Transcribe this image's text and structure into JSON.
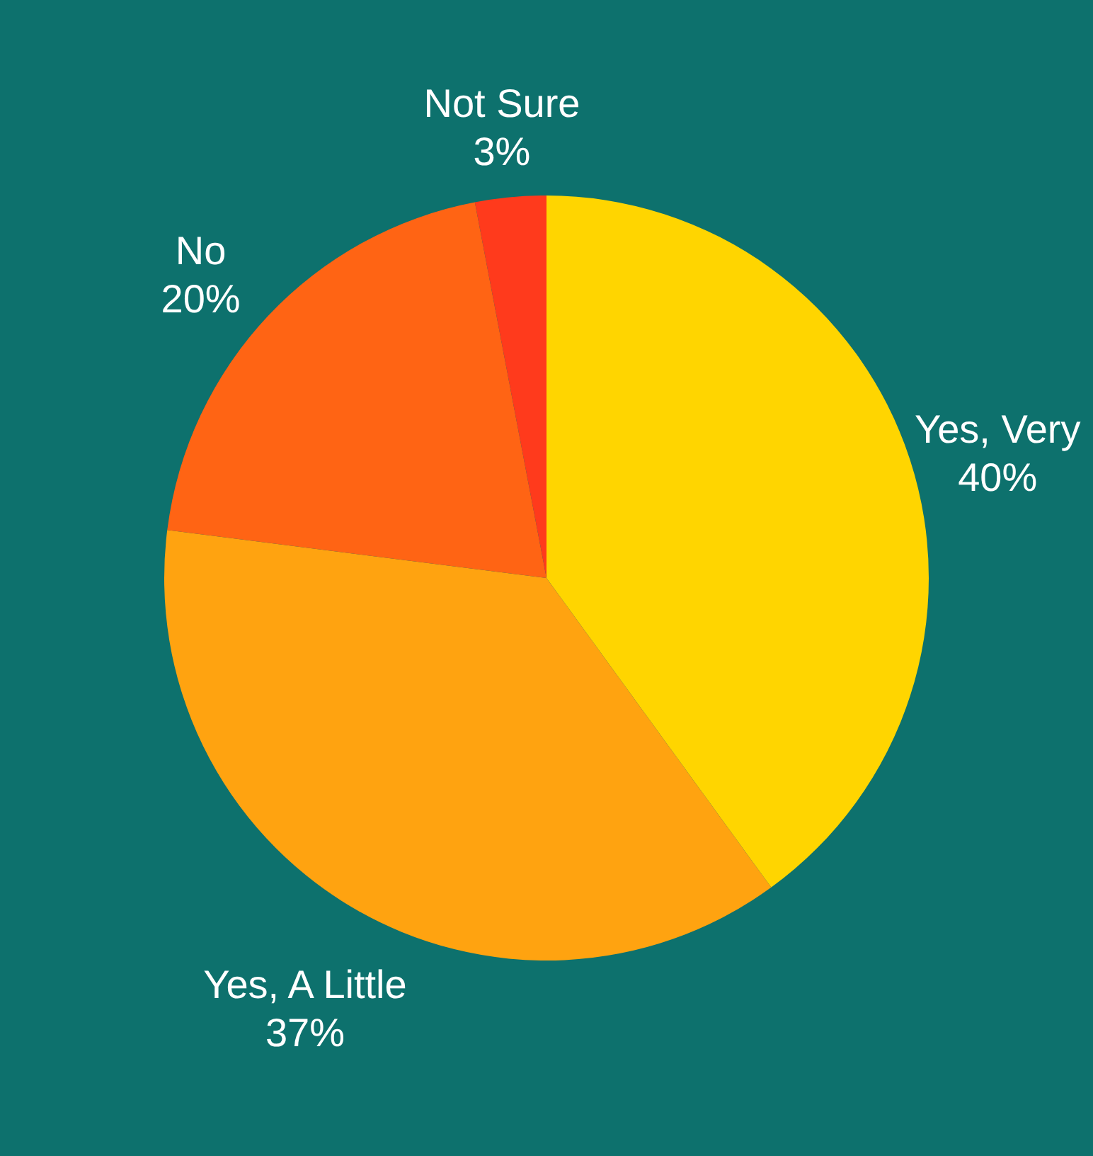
{
  "chart_data": {
    "type": "pie",
    "categories": [
      "Yes, Very",
      "Yes, A Little",
      "No",
      "Not Sure"
    ],
    "values": [
      40,
      37,
      20,
      3
    ],
    "value_labels": [
      "40%",
      "37%",
      "20%",
      "3%"
    ],
    "colors": [
      "#ffd500",
      "#ffa310",
      "#ff6414",
      "#ff3a1c"
    ]
  }
}
